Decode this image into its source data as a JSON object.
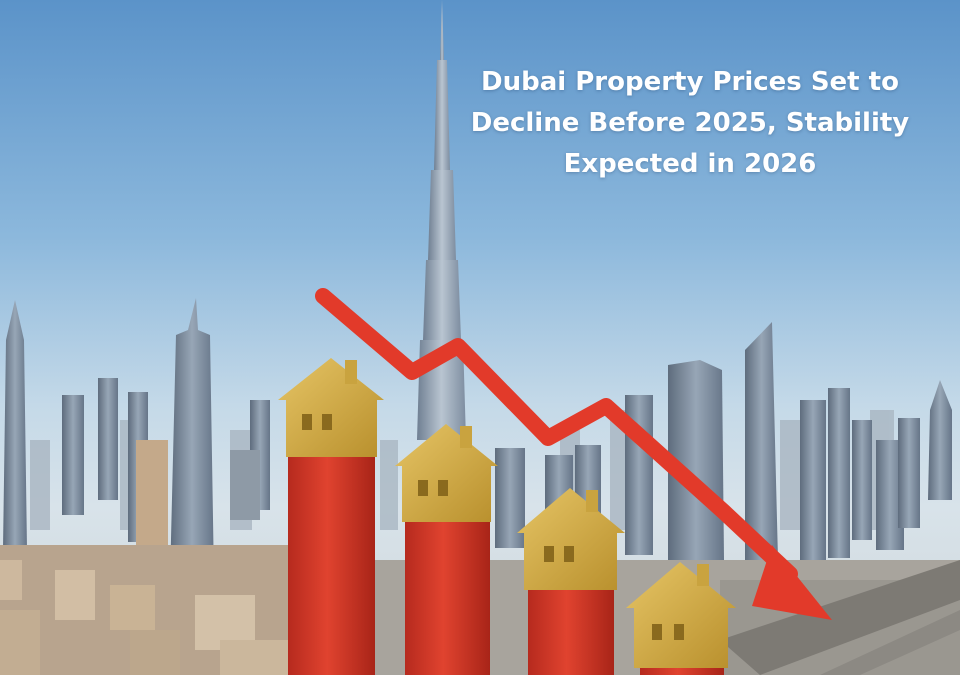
{
  "headline": {
    "text": "Dubai Property Prices Set to Decline Before 2025, Stability Expected in 2026",
    "color": "#ffffff"
  },
  "scene": {
    "subject": "Dubai skyline",
    "sky_color": "#5b93c9",
    "bar_color": "#d93a2b",
    "house_color": "#d8b24a",
    "arrow_color": "#e23a2a"
  },
  "price_trend": {
    "direction": "decline",
    "house_bar_levels": [
      1.0,
      0.72,
      0.42,
      0.04
    ]
  }
}
